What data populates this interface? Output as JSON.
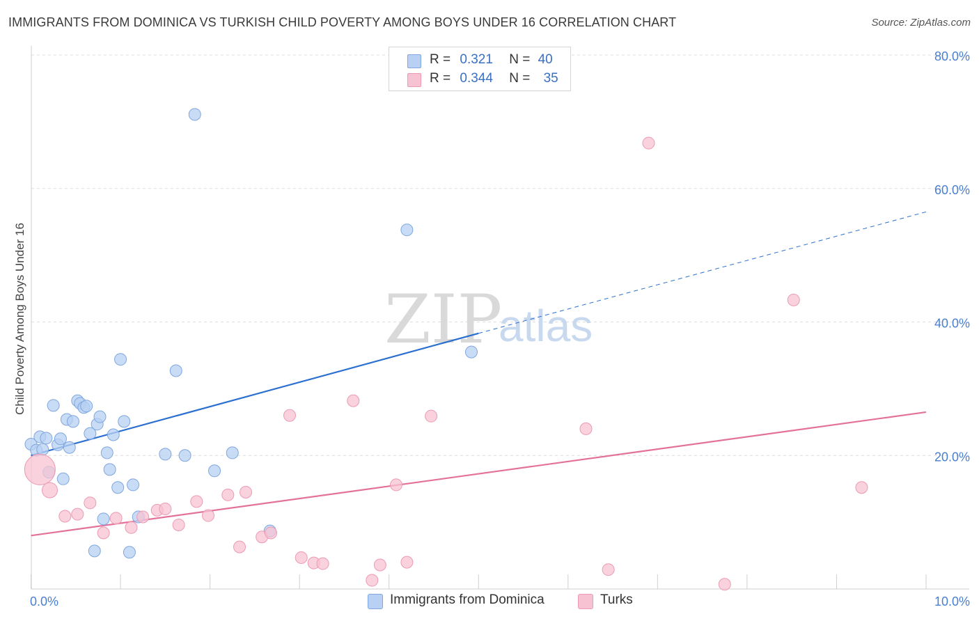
{
  "title": "IMMIGRANTS FROM DOMINICA VS TURKISH CHILD POVERTY AMONG BOYS UNDER 16 CORRELATION CHART",
  "source": "Source: ZipAtlas.com",
  "watermark": {
    "zip": "ZIP",
    "atlas": "atlas"
  },
  "legend": {
    "r_label": "R =",
    "n_label": "N =",
    "items": [
      {
        "r": "0.321",
        "n": "40"
      },
      {
        "r": "0.344",
        "n": "35"
      }
    ]
  },
  "colors": {
    "blue_fill": "#b7d0f3",
    "blue_stroke": "#7fa6de",
    "blue_line": "#2b6fd0",
    "pink_fill": "#f7c3d2",
    "pink_stroke": "#ec9ab3",
    "pink_line": "#e4719a",
    "grid": "#dcdcdc",
    "axis_label": "#4a7fd0"
  },
  "chart_data": {
    "type": "scatter",
    "title": "IMMIGRANTS FROM DOMINICA VS TURKISH CHILD POVERTY AMONG BOYS UNDER 16 CORRELATION CHART",
    "xlabel": "",
    "ylabel": "Child Poverty Among Boys Under 16",
    "xlim": [
      0,
      10
    ],
    "ylim": [
      0,
      80
    ],
    "x_tick_labels": [
      "0.0%",
      "10.0%"
    ],
    "y_ticks": [
      20,
      40,
      60,
      80
    ],
    "y_tick_labels": [
      "20.0%",
      "40.0%",
      "60.0%",
      "80.0%"
    ],
    "grid": true,
    "legend_position": "top-center",
    "series": [
      {
        "name": "Immigrants from Dominica",
        "color": "#b7d0f3",
        "trend": {
          "x0": 0.0,
          "y0": 20.0,
          "x1": 5.0,
          "y1": 38.3,
          "dashed_to_x": 10.0,
          "dashed_to_y": 56.5
        },
        "points": [
          [
            0.0,
            21.7
          ],
          [
            0.06,
            20.8
          ],
          [
            0.1,
            22.8
          ],
          [
            0.13,
            20.9
          ],
          [
            0.17,
            22.6
          ],
          [
            0.2,
            17.5
          ],
          [
            0.25,
            27.5
          ],
          [
            0.3,
            21.6
          ],
          [
            0.33,
            22.5
          ],
          [
            0.36,
            16.5
          ],
          [
            0.4,
            25.4
          ],
          [
            0.43,
            21.2
          ],
          [
            0.47,
            25.1
          ],
          [
            0.52,
            28.2
          ],
          [
            0.55,
            27.8
          ],
          [
            0.59,
            27.2
          ],
          [
            0.62,
            27.4
          ],
          [
            0.66,
            23.3
          ],
          [
            0.71,
            5.7
          ],
          [
            0.74,
            24.7
          ],
          [
            0.77,
            25.8
          ],
          [
            0.81,
            10.5
          ],
          [
            0.85,
            20.4
          ],
          [
            0.88,
            17.9
          ],
          [
            0.92,
            23.1
          ],
          [
            0.97,
            15.2
          ],
          [
            1.0,
            34.4
          ],
          [
            1.04,
            25.1
          ],
          [
            1.1,
            5.5
          ],
          [
            1.14,
            15.6
          ],
          [
            1.2,
            10.8
          ],
          [
            1.5,
            20.2
          ],
          [
            1.62,
            32.7
          ],
          [
            1.72,
            20.0
          ],
          [
            1.83,
            71.1
          ],
          [
            2.05,
            17.7
          ],
          [
            2.25,
            20.4
          ],
          [
            2.67,
            8.7
          ],
          [
            4.2,
            53.8
          ],
          [
            4.92,
            35.5
          ]
        ]
      },
      {
        "name": "Turks",
        "color": "#f7c3d2",
        "trend": {
          "x0": 0.0,
          "y0": 8.0,
          "x1": 10.0,
          "y1": 26.5
        },
        "points": [
          [
            0.1,
            17.9
          ],
          [
            0.21,
            14.8
          ],
          [
            0.38,
            10.9
          ],
          [
            0.52,
            11.2
          ],
          [
            0.66,
            12.9
          ],
          [
            0.81,
            8.4
          ],
          [
            0.95,
            10.6
          ],
          [
            1.12,
            9.2
          ],
          [
            1.25,
            10.8
          ],
          [
            1.41,
            11.8
          ],
          [
            1.5,
            12.0
          ],
          [
            1.65,
            9.6
          ],
          [
            1.85,
            13.1
          ],
          [
            1.98,
            11.0
          ],
          [
            2.2,
            14.1
          ],
          [
            2.33,
            6.3
          ],
          [
            2.4,
            14.5
          ],
          [
            2.58,
            7.8
          ],
          [
            2.68,
            8.4
          ],
          [
            2.89,
            26.0
          ],
          [
            3.02,
            4.7
          ],
          [
            3.16,
            3.9
          ],
          [
            3.26,
            3.8
          ],
          [
            3.6,
            28.2
          ],
          [
            3.81,
            1.3
          ],
          [
            3.9,
            3.6
          ],
          [
            4.08,
            15.6
          ],
          [
            4.2,
            4.0
          ],
          [
            4.47,
            25.9
          ],
          [
            6.2,
            24.0
          ],
          [
            6.45,
            2.9
          ],
          [
            6.9,
            66.8
          ],
          [
            7.75,
            0.7
          ],
          [
            8.52,
            43.3
          ],
          [
            9.28,
            15.2
          ]
        ]
      }
    ]
  }
}
